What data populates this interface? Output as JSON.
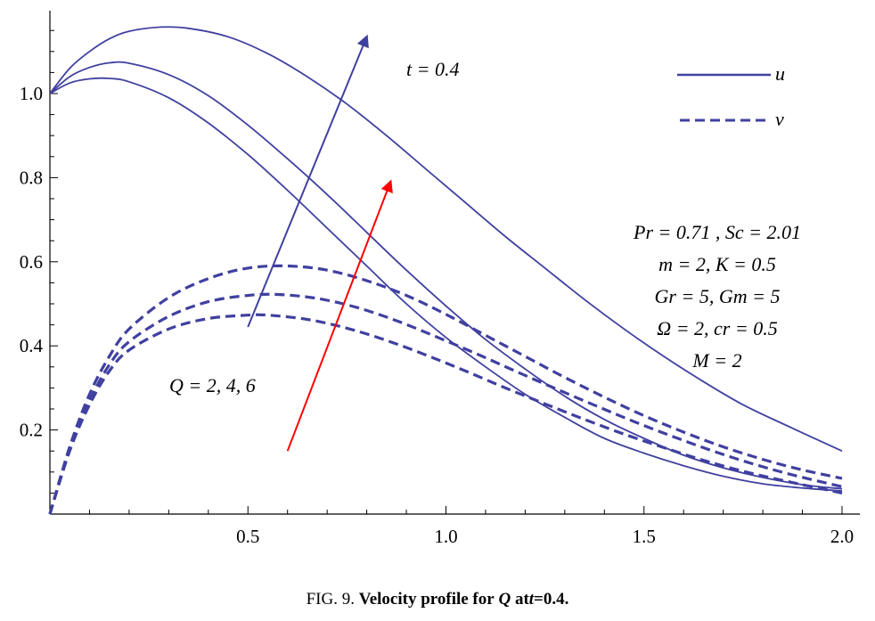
{
  "caption": {
    "prefix": "FIG. 9.",
    "title_start": "Velocity profile for",
    "variable": "Q",
    "title_end": "at",
    "time_var": "t",
    "time_value": "=0.4."
  },
  "chart_data": {
    "type": "line",
    "title": "",
    "xlabel": "",
    "ylabel": "",
    "xlim": [
      0,
      2.0
    ],
    "ylim": [
      0,
      1.15
    ],
    "x_ticks": [
      "0.5",
      "1.0",
      "1.5",
      "2.0"
    ],
    "y_ticks": [
      "0.2",
      "0.4",
      "0.6",
      "0.8",
      "1.0"
    ],
    "colors": {
      "curves": "#4040a0",
      "arrow_u": "#4040a0",
      "arrow_v": "#ff0000"
    },
    "annotations": {
      "time": "t = 0.4",
      "q_values": "Q = 2,   4,   6",
      "params": [
        "Pr = 0.71 , Sc = 2.01",
        "m = 2, K = 0.5",
        "Gr = 5, Gm = 5",
        "Ω = 2, cr = 0.5",
        "M = 2"
      ]
    },
    "legend": {
      "placement": "top-right",
      "entries": [
        {
          "label": "u",
          "style": "solid"
        },
        {
          "label": "v",
          "style": "dashed"
        }
      ]
    },
    "series": [
      {
        "name": "u",
        "style": "solid",
        "Q": 2,
        "x": [
          0,
          0.05,
          0.1,
          0.15,
          0.2,
          0.3,
          0.4,
          0.5,
          0.6,
          0.7,
          0.8,
          0.9,
          1.0,
          1.1,
          1.2,
          1.3,
          1.4,
          1.5,
          1.6,
          1.7,
          1.8,
          1.9,
          2.0
        ],
        "y": [
          1.0,
          1.025,
          1.035,
          1.036,
          1.028,
          0.99,
          0.93,
          0.855,
          0.77,
          0.68,
          0.59,
          0.5,
          0.42,
          0.35,
          0.285,
          0.23,
          0.18,
          0.145,
          0.115,
          0.09,
          0.072,
          0.062,
          0.055
        ]
      },
      {
        "name": "u",
        "style": "solid",
        "Q": 4,
        "x": [
          0,
          0.05,
          0.1,
          0.15,
          0.2,
          0.3,
          0.4,
          0.5,
          0.6,
          0.7,
          0.8,
          0.9,
          1.0,
          1.1,
          1.2,
          1.3,
          1.4,
          1.5,
          1.6,
          1.7,
          1.8,
          1.9,
          2.0
        ],
        "y": [
          1.0,
          1.04,
          1.062,
          1.073,
          1.072,
          1.045,
          0.995,
          0.925,
          0.845,
          0.76,
          0.67,
          0.58,
          0.495,
          0.415,
          0.345,
          0.28,
          0.225,
          0.18,
          0.14,
          0.11,
          0.087,
          0.07,
          0.06
        ]
      },
      {
        "name": "u",
        "style": "solid",
        "Q": 6,
        "x": [
          0,
          0.05,
          0.1,
          0.15,
          0.2,
          0.28,
          0.35,
          0.45,
          0.55,
          0.65,
          0.75,
          0.85,
          0.95,
          1.05,
          1.15,
          1.25,
          1.35,
          1.45,
          1.55,
          1.65,
          1.75,
          1.85,
          2.0
        ],
        "y": [
          1.0,
          1.06,
          1.1,
          1.13,
          1.148,
          1.158,
          1.155,
          1.135,
          1.095,
          1.04,
          0.975,
          0.9,
          0.82,
          0.74,
          0.66,
          0.585,
          0.51,
          0.44,
          0.375,
          0.315,
          0.26,
          0.215,
          0.15
        ]
      },
      {
        "name": "v",
        "style": "dashed",
        "Q": 2,
        "x": [
          0,
          0.05,
          0.1,
          0.15,
          0.2,
          0.3,
          0.4,
          0.5,
          0.55,
          0.65,
          0.75,
          0.85,
          0.95,
          1.05,
          1.15,
          1.25,
          1.35,
          1.45,
          1.55,
          1.65,
          1.75,
          1.85,
          2.0
        ],
        "y": [
          0.0,
          0.15,
          0.26,
          0.34,
          0.39,
          0.44,
          0.465,
          0.473,
          0.473,
          0.463,
          0.442,
          0.413,
          0.378,
          0.34,
          0.3,
          0.262,
          0.225,
          0.19,
          0.158,
          0.128,
          0.102,
          0.08,
          0.05
        ]
      },
      {
        "name": "v",
        "style": "dashed",
        "Q": 4,
        "x": [
          0,
          0.05,
          0.1,
          0.15,
          0.2,
          0.3,
          0.4,
          0.5,
          0.58,
          0.68,
          0.78,
          0.88,
          0.98,
          1.08,
          1.18,
          1.28,
          1.38,
          1.48,
          1.58,
          1.68,
          1.78,
          1.88,
          2.0
        ],
        "y": [
          0.0,
          0.155,
          0.27,
          0.355,
          0.41,
          0.47,
          0.505,
          0.52,
          0.522,
          0.512,
          0.49,
          0.458,
          0.42,
          0.38,
          0.338,
          0.297,
          0.257,
          0.218,
          0.182,
          0.148,
          0.118,
          0.092,
          0.065
        ]
      },
      {
        "name": "v",
        "style": "dashed",
        "Q": 6,
        "x": [
          0,
          0.05,
          0.1,
          0.15,
          0.2,
          0.3,
          0.4,
          0.5,
          0.6,
          0.7,
          0.8,
          0.9,
          1.0,
          1.1,
          1.2,
          1.3,
          1.4,
          1.5,
          1.6,
          1.7,
          1.8,
          1.9,
          2.0
        ],
        "y": [
          0.0,
          0.16,
          0.285,
          0.375,
          0.44,
          0.515,
          0.56,
          0.585,
          0.59,
          0.58,
          0.555,
          0.52,
          0.475,
          0.425,
          0.375,
          0.325,
          0.278,
          0.234,
          0.195,
          0.16,
          0.13,
          0.105,
          0.085
        ]
      }
    ],
    "arrows": [
      {
        "name": "u-trend-arrow",
        "color": "arrow_u",
        "from": [
          0.5,
          0.445
        ],
        "to": [
          0.8,
          1.135
        ]
      },
      {
        "name": "v-trend-arrow",
        "color": "arrow_v",
        "from": [
          0.6,
          0.15
        ],
        "to": [
          0.86,
          0.79
        ]
      }
    ]
  }
}
